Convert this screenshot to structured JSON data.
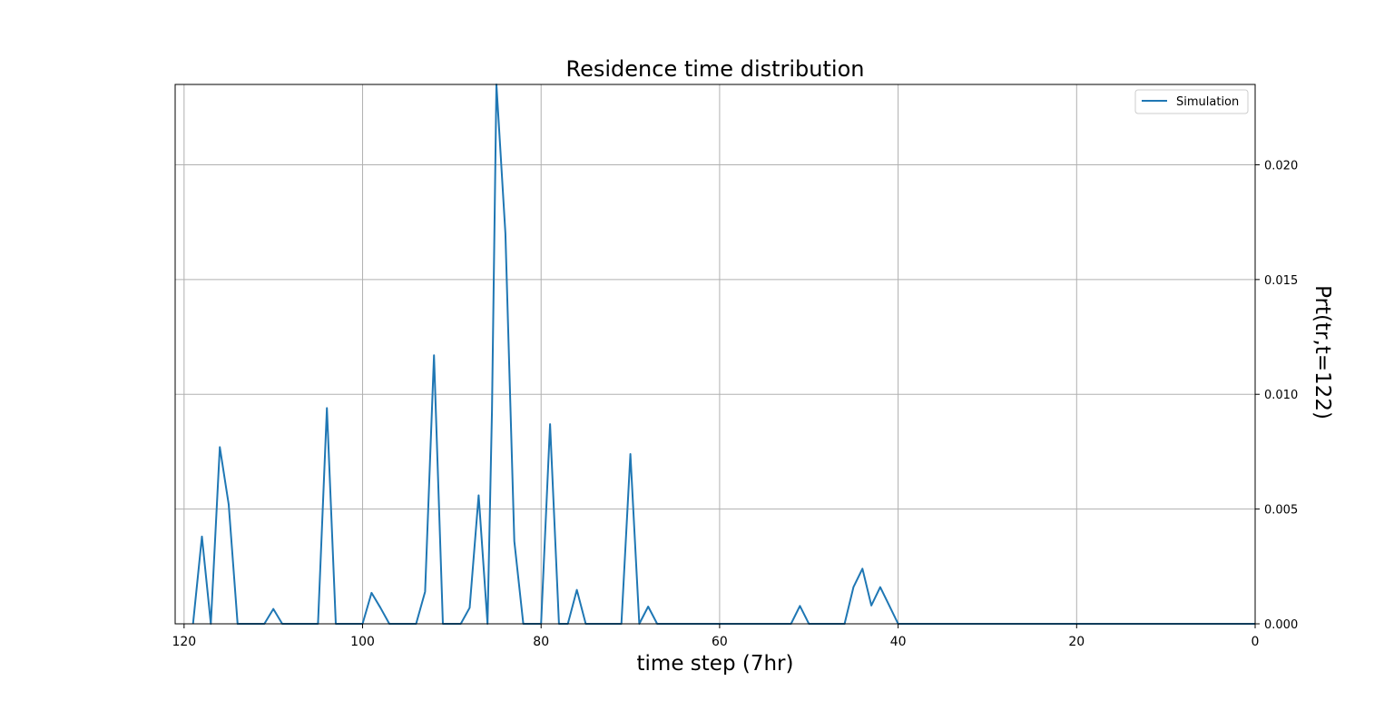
{
  "colors": {
    "series": "#1f77b4",
    "grid": "#b0b0b0",
    "axes": "#000000",
    "background": "#ffffff"
  },
  "chart_data": {
    "type": "line",
    "title": "Residence time distribution",
    "xlabel": "time step (7hr)",
    "ylabel": "Prt(tr,t=122)",
    "xlim": [
      121,
      0
    ],
    "x_inverted": true,
    "ylim": [
      0,
      0.0235
    ],
    "y_axis_side": "right",
    "grid": true,
    "legend_position": "upper right",
    "x_ticks": [
      120,
      100,
      80,
      60,
      40,
      20,
      0
    ],
    "x_tick_labels": [
      "120",
      "100",
      "80",
      "60",
      "40",
      "20",
      "0"
    ],
    "y_ticks": [
      0.0,
      0.005,
      0.01,
      0.015,
      0.02
    ],
    "y_tick_labels": [
      "0.000",
      "0.005",
      "0.010",
      "0.015",
      "0.020"
    ],
    "series": [
      {
        "name": "Simulation",
        "x": [
          119,
          118,
          117,
          116,
          115,
          114,
          113,
          112,
          111,
          110,
          109,
          108,
          107,
          106,
          105,
          104,
          103,
          102,
          101,
          100,
          99,
          98,
          97,
          96,
          95,
          94,
          93,
          92,
          91,
          90,
          89,
          88,
          87,
          86,
          85.5,
          85,
          84,
          83,
          82,
          81,
          80,
          79,
          78,
          77,
          76,
          75,
          74,
          73,
          72,
          71,
          70,
          69,
          68,
          67,
          66,
          65,
          64,
          63,
          62,
          61,
          60,
          59,
          58,
          57,
          56,
          55,
          54,
          53,
          52,
          51,
          50,
          49,
          48,
          47,
          46,
          45,
          44,
          43,
          42,
          41,
          40,
          30,
          20,
          10,
          0
        ],
        "y": [
          0.0,
          0.0038,
          0.0,
          0.0077,
          0.0052,
          0.0,
          0.0,
          0.0,
          0.0,
          0.00065,
          0.0,
          0.0,
          0.0,
          0.0,
          0.0,
          0.0094,
          0.0,
          0.0,
          0.0,
          0.0,
          0.00135,
          0.0007,
          0.0,
          0.0,
          0.0,
          0.0,
          0.0014,
          0.0117,
          0.0,
          0.0,
          0.0,
          0.0007,
          0.0056,
          0.0,
          0.0093,
          0.0235,
          0.017,
          0.0036,
          0.0,
          0.0,
          0.0,
          0.0087,
          0.0,
          0.0,
          0.00148,
          0.0,
          0.0,
          0.0,
          0.0,
          0.0,
          0.0074,
          0.0,
          0.00075,
          0.0,
          0.0,
          0.0,
          0.0,
          0.0,
          0.0,
          0.0,
          0.0,
          0.0,
          0.0,
          0.0,
          0.0,
          0.0,
          0.0,
          0.0,
          0.0,
          0.00078,
          0.0,
          0.0,
          0.0,
          0.0,
          0.0,
          0.0016,
          0.0024,
          0.0008,
          0.0016,
          0.0008,
          0.0,
          0.0,
          0.0,
          0.0,
          0.0
        ]
      }
    ]
  }
}
